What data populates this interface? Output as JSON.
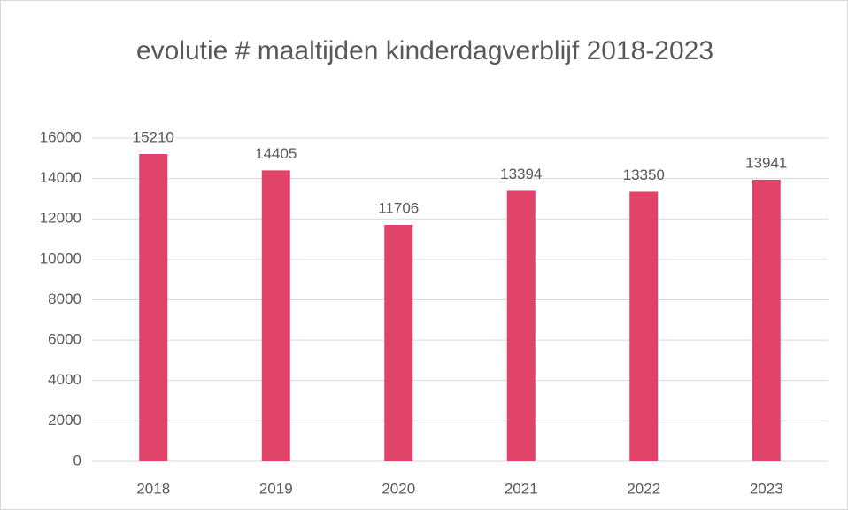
{
  "chart_data": {
    "type": "bar",
    "title": "evolutie # maaltijden kinderdagverblijf 2018-2023",
    "categories": [
      "2018",
      "2019",
      "2020",
      "2021",
      "2022",
      "2023"
    ],
    "values": [
      15210,
      14405,
      11706,
      13394,
      13350,
      13941
    ],
    "color": "#e0426a",
    "ylim": [
      0,
      16000
    ],
    "yticks": [
      0,
      2000,
      4000,
      6000,
      8000,
      10000,
      12000,
      14000,
      16000
    ],
    "grid": true,
    "data_labels": true
  }
}
